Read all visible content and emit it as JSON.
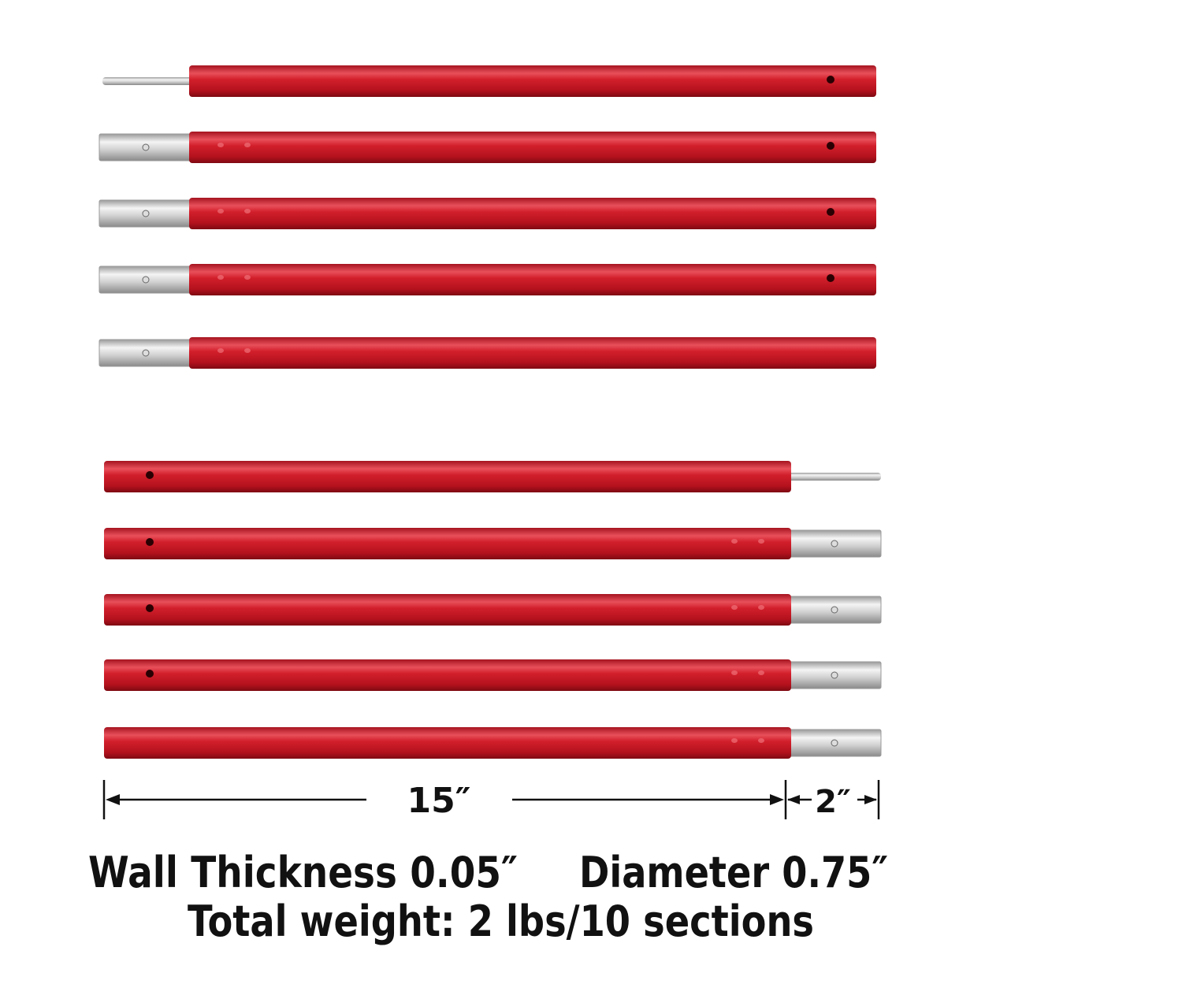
{
  "dimensions": {
    "pole_length": "15″",
    "connector_length": "2″"
  },
  "specs": {
    "wall_thickness": "Wall Thickness 0.05″",
    "diameter": "Diameter 0.75″",
    "total_weight": "Total weight: 2 lbs/10 sections"
  }
}
